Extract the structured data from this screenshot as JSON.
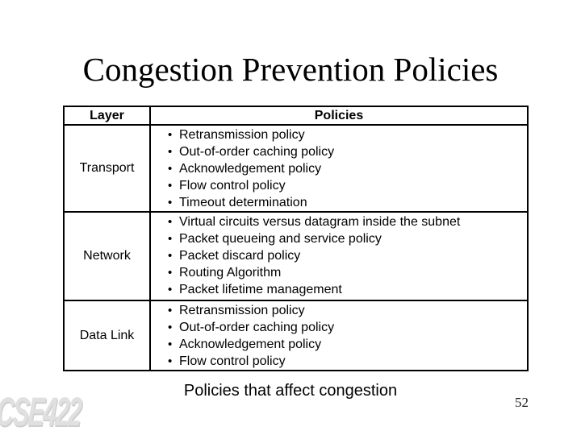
{
  "slide": {
    "title": "Congestion Prevention Policies",
    "caption": "Policies that affect congestion",
    "watermark": "CSE422",
    "page_number": "52"
  },
  "table": {
    "bullet_char": "•",
    "headers": [
      "Layer",
      "Policies"
    ],
    "rows": [
      {
        "layer": "Transport",
        "policies": [
          "Retransmission policy",
          "Out-of-order caching policy",
          "Acknowledgement policy",
          "Flow control policy",
          "Timeout determination"
        ]
      },
      {
        "layer": "Network",
        "policies": [
          "Virtual circuits versus datagram inside the subnet",
          "Packet queueing and service policy",
          "Packet discard policy",
          "Routing Algorithm",
          "Packet lifetime management"
        ]
      },
      {
        "layer": "Data Link",
        "policies": [
          "Retransmission policy",
          "Out-of-order caching policy",
          "Acknowledgement policy",
          "Flow control policy"
        ]
      }
    ]
  },
  "colors": {
    "background": "#ffffff",
    "text": "#000000",
    "border": "#000000",
    "watermark": "#e0e0e0"
  }
}
